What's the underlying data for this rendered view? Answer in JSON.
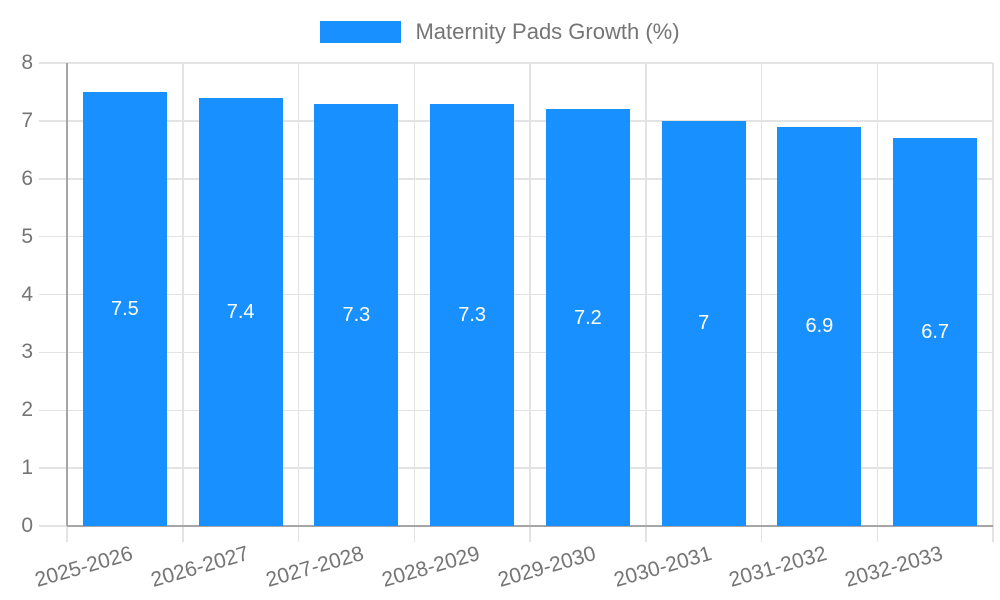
{
  "legend": {
    "label": "Maternity Pads Growth (%)"
  },
  "chart_data": {
    "type": "bar",
    "title": "Maternity Pads Growth (%)",
    "categories": [
      "2025-2026",
      "2026-2027",
      "2027-2028",
      "2028-2029",
      "2029-2030",
      "2030-2031",
      "2031-2032",
      "2032-2033"
    ],
    "values": [
      7.5,
      7.4,
      7.3,
      7.3,
      7.2,
      7,
      6.9,
      6.7
    ],
    "xlabel": "",
    "ylabel": "",
    "ylim": [
      0,
      8
    ],
    "yticks": [
      0,
      1,
      2,
      3,
      4,
      5,
      6,
      7,
      8
    ],
    "grid": true,
    "legend_position": "top",
    "x_label_rotation_deg": -16,
    "colors": {
      "bar": "#1890ff",
      "bar_value_text": "#ffffff",
      "axis_text": "#757575",
      "gridline": "#e3e3e3",
      "axis_line": "#a6a6a6"
    }
  }
}
